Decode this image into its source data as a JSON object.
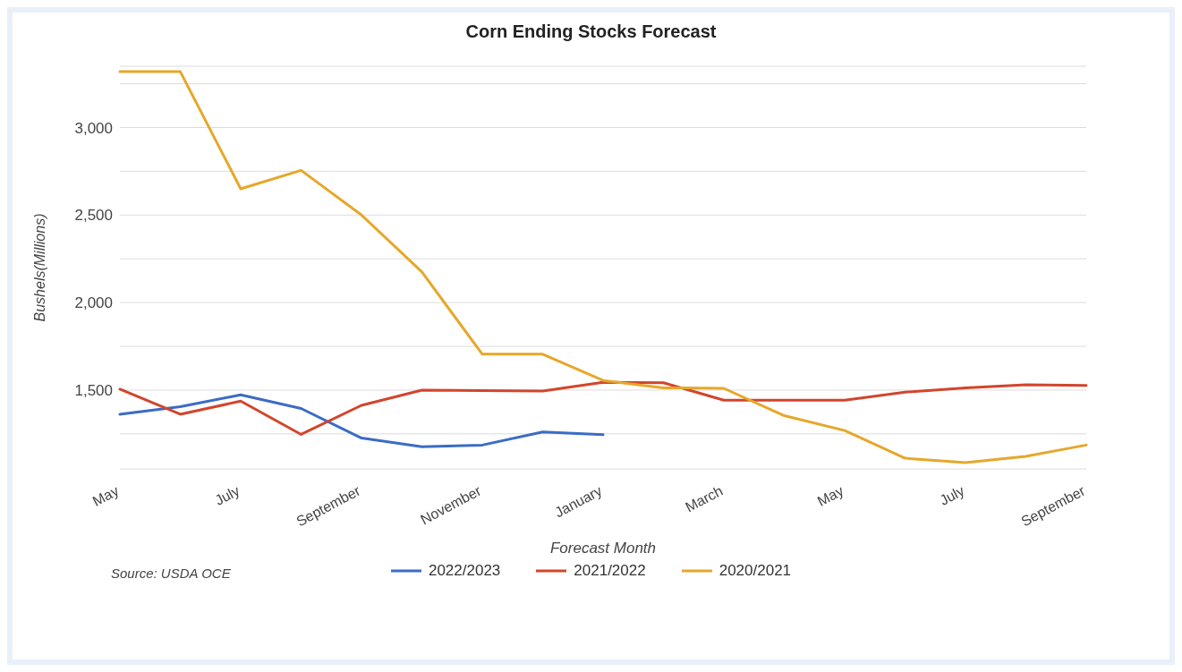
{
  "chart_data": {
    "type": "line",
    "title": "Corn Ending Stocks Forecast",
    "xlabel": "Forecast Month",
    "ylabel": "Bushels(Millions)",
    "categories": [
      "May",
      null,
      "July",
      null,
      "September",
      null,
      "November",
      null,
      "January",
      null,
      "March",
      null,
      "May",
      null,
      "July",
      null,
      "September"
    ],
    "series": [
      {
        "name": "2022/2023",
        "color": "#3b6cc4",
        "values": [
          1362,
          1405,
          1473,
          1395,
          1226,
          1177,
          1186,
          1261,
          1245,
          null,
          null,
          null,
          null,
          null,
          null,
          null,
          null
        ]
      },
      {
        "name": "2021/2022",
        "color": "#d2452c",
        "values": [
          1505,
          1362,
          1437,
          1247,
          1413,
          1500,
          1497,
          1495,
          1545,
          1542,
          1442,
          1442,
          1442,
          1488,
          1513,
          1531,
          1527
        ]
      },
      {
        "name": "2020/2021",
        "color": "#e6a72a",
        "values": [
          3319,
          3319,
          2650,
          2755,
          2500,
          2175,
          1705,
          1705,
          1555,
          1513,
          1510,
          1354,
          1269,
          1111,
          1086,
          1122,
          1186
        ]
      }
    ],
    "ylim": [
      1050,
      3350
    ],
    "yticks": [
      {
        "value": 1250,
        "label": null
      },
      {
        "value": 1500,
        "label": "1,500"
      },
      {
        "value": 1750,
        "label": null
      },
      {
        "value": 2000,
        "label": "2,000"
      },
      {
        "value": 2250,
        "label": null
      },
      {
        "value": 2500,
        "label": "2,500"
      },
      {
        "value": 2750,
        "label": null
      },
      {
        "value": 3000,
        "label": "3,000"
      },
      {
        "value": 3250,
        "label": null
      }
    ],
    "grid": "y",
    "legend": "bottom",
    "marker": "none",
    "line_style": "solid",
    "annotations": [
      "Source: USDA OCE"
    ]
  }
}
